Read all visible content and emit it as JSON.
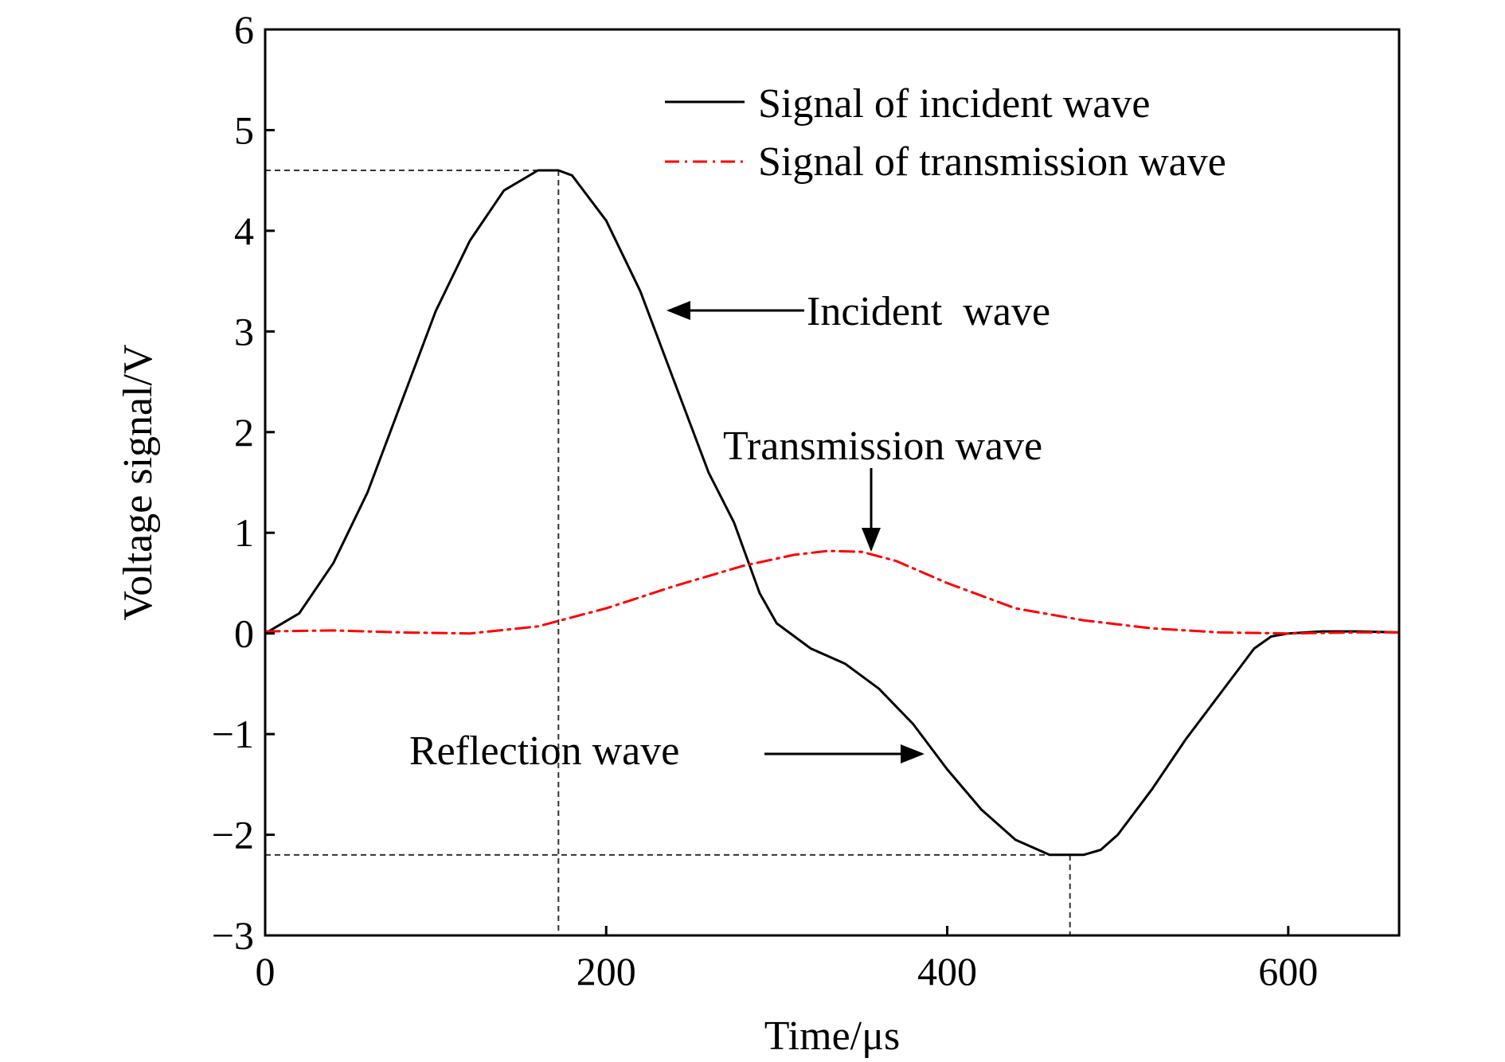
{
  "chart_data": {
    "type": "line",
    "title": "",
    "xlabel": "Time/μs",
    "ylabel": "Voltage signal/V",
    "xlim": [
      0,
      665
    ],
    "ylim": [
      -3,
      6
    ],
    "xticks": [
      0,
      200,
      400,
      600
    ],
    "yticks": [
      6,
      5,
      4,
      3,
      2,
      1,
      0,
      -1,
      -2,
      -3
    ],
    "xtick_labels": [
      "0",
      "200",
      "400",
      "600"
    ],
    "ytick_labels": [
      "6",
      "5",
      "4",
      "3",
      "2",
      "1",
      "0",
      "−1",
      "−2",
      "−3"
    ],
    "grid": false,
    "legend_position": "top-right",
    "series": [
      {
        "name": "Signal of incident wave",
        "color": "#000000",
        "line_style": "solid",
        "x": [
          0,
          20,
          40,
          60,
          80,
          100,
          120,
          140,
          160,
          172,
          180,
          200,
          220,
          240,
          260,
          275,
          290,
          300,
          320,
          340,
          360,
          380,
          400,
          420,
          440,
          460,
          470,
          480,
          490,
          500,
          520,
          540,
          560,
          580,
          590,
          600,
          620,
          640,
          665
        ],
        "y": [
          0.0,
          0.2,
          0.7,
          1.4,
          2.3,
          3.2,
          3.9,
          4.4,
          4.6,
          4.6,
          4.55,
          4.1,
          3.4,
          2.5,
          1.6,
          1.1,
          0.4,
          0.1,
          -0.15,
          -0.3,
          -0.55,
          -0.9,
          -1.35,
          -1.75,
          -2.05,
          -2.2,
          -2.2,
          -2.2,
          -2.15,
          -2.0,
          -1.55,
          -1.05,
          -0.6,
          -0.15,
          -0.03,
          0.0,
          0.02,
          0.02,
          0.01
        ]
      },
      {
        "name": "Signal of transmission wave",
        "color": "#ff0000",
        "line_style": "dashdot",
        "x": [
          0,
          40,
          80,
          120,
          160,
          200,
          240,
          280,
          310,
          330,
          350,
          370,
          400,
          440,
          480,
          520,
          560,
          600,
          640,
          665
        ],
        "y": [
          0.02,
          0.03,
          0.01,
          0.0,
          0.07,
          0.25,
          0.47,
          0.67,
          0.78,
          0.82,
          0.81,
          0.72,
          0.5,
          0.25,
          0.13,
          0.05,
          0.01,
          0.0,
          0.01,
          0.01
        ]
      }
    ],
    "reference_lines": [
      {
        "type": "peak",
        "x": 172,
        "y": 4.6
      },
      {
        "type": "trough",
        "x": 472,
        "y": -2.2
      }
    ],
    "annotations": [
      {
        "label": "Incident  wave",
        "target": [
          235,
          3.2
        ],
        "arrow_direction": "left"
      },
      {
        "label": "Transmission wave",
        "target": [
          356,
          0.8
        ],
        "arrow_direction": "down"
      },
      {
        "label": "Reflection wave",
        "target": [
          388,
          -1.2
        ],
        "arrow_direction": "right"
      }
    ]
  }
}
